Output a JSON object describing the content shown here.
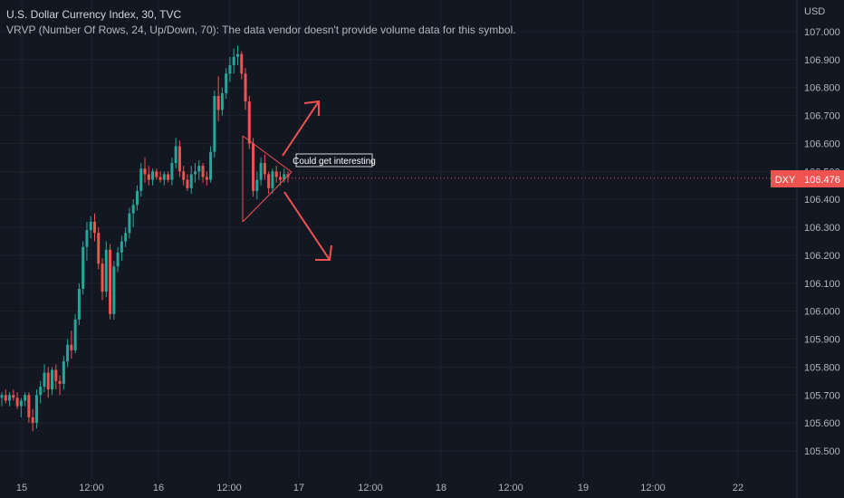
{
  "header": {
    "title": "U.S. Dollar Currency Index, 30, TVC",
    "indicator": "VRVP (Number Of Rows, 24, Up/Down, 70): The data vendor doesn't provide volume data for this symbol."
  },
  "colors": {
    "background": "#131722",
    "up": "#26a69a",
    "down": "#ef5350",
    "grid": "#1e222d",
    "text": "#b2b5be"
  },
  "price_tag": {
    "symbol": "DXY",
    "value": "106.476"
  },
  "annotation": {
    "text": "Could get interesting"
  },
  "chart_data": {
    "type": "candlestick",
    "currency_label": "USD",
    "ylim": [
      105.44,
      107.1
    ],
    "y_ticks": [
      "107.000",
      "106.900",
      "106.800",
      "106.700",
      "106.600",
      "106.500",
      "106.400",
      "106.300",
      "106.200",
      "106.100",
      "106.000",
      "105.900",
      "105.800",
      "105.700",
      "105.600",
      "105.500"
    ],
    "x_ticks": [
      "15",
      "12:00",
      "16",
      "12:00",
      "17",
      "12:00",
      "18",
      "12:00",
      "19",
      "12:00",
      "22"
    ],
    "last_price": 106.476,
    "candles": [
      {
        "o": 105.69,
        "h": 105.71,
        "l": 105.66,
        "c": 105.7
      },
      {
        "o": 105.7,
        "h": 105.72,
        "l": 105.67,
        "c": 105.68
      },
      {
        "o": 105.68,
        "h": 105.71,
        "l": 105.66,
        "c": 105.7
      },
      {
        "o": 105.7,
        "h": 105.72,
        "l": 105.68,
        "c": 105.69
      },
      {
        "o": 105.69,
        "h": 105.71,
        "l": 105.65,
        "c": 105.66
      },
      {
        "o": 105.66,
        "h": 105.69,
        "l": 105.62,
        "c": 105.68
      },
      {
        "o": 105.68,
        "h": 105.71,
        "l": 105.66,
        "c": 105.7
      },
      {
        "o": 105.7,
        "h": 105.71,
        "l": 105.6,
        "c": 105.62
      },
      {
        "o": 105.62,
        "h": 105.65,
        "l": 105.57,
        "c": 105.6
      },
      {
        "o": 105.6,
        "h": 105.72,
        "l": 105.58,
        "c": 105.7
      },
      {
        "o": 105.7,
        "h": 105.75,
        "l": 105.67,
        "c": 105.73
      },
      {
        "o": 105.73,
        "h": 105.81,
        "l": 105.71,
        "c": 105.78
      },
      {
        "o": 105.78,
        "h": 105.8,
        "l": 105.69,
        "c": 105.72
      },
      {
        "o": 105.72,
        "h": 105.8,
        "l": 105.7,
        "c": 105.79
      },
      {
        "o": 105.79,
        "h": 105.81,
        "l": 105.72,
        "c": 105.75
      },
      {
        "o": 105.75,
        "h": 105.77,
        "l": 105.7,
        "c": 105.74
      },
      {
        "o": 105.74,
        "h": 105.84,
        "l": 105.72,
        "c": 105.82
      },
      {
        "o": 105.82,
        "h": 105.9,
        "l": 105.8,
        "c": 105.88
      },
      {
        "o": 105.88,
        "h": 105.93,
        "l": 105.83,
        "c": 105.86
      },
      {
        "o": 105.86,
        "h": 105.99,
        "l": 105.85,
        "c": 105.97
      },
      {
        "o": 105.97,
        "h": 106.1,
        "l": 105.95,
        "c": 106.08
      },
      {
        "o": 106.08,
        "h": 106.25,
        "l": 106.06,
        "c": 106.23
      },
      {
        "o": 106.23,
        "h": 106.32,
        "l": 106.18,
        "c": 106.29
      },
      {
        "o": 106.29,
        "h": 106.34,
        "l": 106.26,
        "c": 106.32
      },
      {
        "o": 106.32,
        "h": 106.35,
        "l": 106.25,
        "c": 106.28
      },
      {
        "o": 106.28,
        "h": 106.3,
        "l": 106.15,
        "c": 106.17
      },
      {
        "o": 106.17,
        "h": 106.19,
        "l": 106.04,
        "c": 106.07
      },
      {
        "o": 106.07,
        "h": 106.25,
        "l": 106.05,
        "c": 106.22
      },
      {
        "o": 106.22,
        "h": 106.24,
        "l": 105.97,
        "c": 105.99
      },
      {
        "o": 105.99,
        "h": 106.18,
        "l": 105.97,
        "c": 106.16
      },
      {
        "o": 106.16,
        "h": 106.23,
        "l": 106.14,
        "c": 106.21
      },
      {
        "o": 106.21,
        "h": 106.27,
        "l": 106.18,
        "c": 106.25
      },
      {
        "o": 106.25,
        "h": 106.3,
        "l": 106.23,
        "c": 106.28
      },
      {
        "o": 106.28,
        "h": 106.37,
        "l": 106.26,
        "c": 106.35
      },
      {
        "o": 106.35,
        "h": 106.4,
        "l": 106.3,
        "c": 106.38
      },
      {
        "o": 106.38,
        "h": 106.45,
        "l": 106.36,
        "c": 106.43
      },
      {
        "o": 106.43,
        "h": 106.53,
        "l": 106.41,
        "c": 106.51
      },
      {
        "o": 106.51,
        "h": 106.55,
        "l": 106.46,
        "c": 106.49
      },
      {
        "o": 106.49,
        "h": 106.52,
        "l": 106.45,
        "c": 106.47
      },
      {
        "o": 106.47,
        "h": 106.51,
        "l": 106.45,
        "c": 106.5
      },
      {
        "o": 106.5,
        "h": 106.51,
        "l": 106.47,
        "c": 106.48
      },
      {
        "o": 106.48,
        "h": 106.5,
        "l": 106.46,
        "c": 106.47
      },
      {
        "o": 106.47,
        "h": 106.5,
        "l": 106.45,
        "c": 106.49
      },
      {
        "o": 106.49,
        "h": 106.5,
        "l": 106.46,
        "c": 106.47
      },
      {
        "o": 106.47,
        "h": 106.55,
        "l": 106.45,
        "c": 106.53
      },
      {
        "o": 106.53,
        "h": 106.62,
        "l": 106.51,
        "c": 106.59
      },
      {
        "o": 106.59,
        "h": 106.61,
        "l": 106.48,
        "c": 106.5
      },
      {
        "o": 106.5,
        "h": 106.52,
        "l": 106.45,
        "c": 106.47
      },
      {
        "o": 106.47,
        "h": 106.49,
        "l": 106.43,
        "c": 106.44
      },
      {
        "o": 106.44,
        "h": 106.52,
        "l": 106.42,
        "c": 106.49
      },
      {
        "o": 106.49,
        "h": 106.53,
        "l": 106.46,
        "c": 106.5
      },
      {
        "o": 106.5,
        "h": 106.54,
        "l": 106.47,
        "c": 106.52
      },
      {
        "o": 106.52,
        "h": 106.53,
        "l": 106.46,
        "c": 106.48
      },
      {
        "o": 106.48,
        "h": 106.5,
        "l": 106.45,
        "c": 106.47
      },
      {
        "o": 106.47,
        "h": 106.59,
        "l": 106.46,
        "c": 106.57
      },
      {
        "o": 106.57,
        "h": 106.79,
        "l": 106.55,
        "c": 106.77
      },
      {
        "o": 106.77,
        "h": 106.84,
        "l": 106.68,
        "c": 106.72
      },
      {
        "o": 106.72,
        "h": 106.8,
        "l": 106.7,
        "c": 106.78
      },
      {
        "o": 106.78,
        "h": 106.87,
        "l": 106.76,
        "c": 106.85
      },
      {
        "o": 106.85,
        "h": 106.91,
        "l": 106.82,
        "c": 106.88
      },
      {
        "o": 106.88,
        "h": 106.94,
        "l": 106.85,
        "c": 106.91
      },
      {
        "o": 106.91,
        "h": 106.95,
        "l": 106.88,
        "c": 106.92
      },
      {
        "o": 106.92,
        "h": 106.93,
        "l": 106.83,
        "c": 106.85
      },
      {
        "o": 106.85,
        "h": 106.87,
        "l": 106.72,
        "c": 106.75
      },
      {
        "o": 106.75,
        "h": 106.77,
        "l": 106.58,
        "c": 106.6
      },
      {
        "o": 106.6,
        "h": 106.62,
        "l": 106.41,
        "c": 106.43
      },
      {
        "o": 106.43,
        "h": 106.5,
        "l": 106.4,
        "c": 106.47
      },
      {
        "o": 106.47,
        "h": 106.55,
        "l": 106.45,
        "c": 106.53
      },
      {
        "o": 106.53,
        "h": 106.56,
        "l": 106.47,
        "c": 106.49
      },
      {
        "o": 106.49,
        "h": 106.5,
        "l": 106.42,
        "c": 106.44
      },
      {
        "o": 106.44,
        "h": 106.51,
        "l": 106.42,
        "c": 106.5
      },
      {
        "o": 106.5,
        "h": 106.52,
        "l": 106.46,
        "c": 106.48
      },
      {
        "o": 106.48,
        "h": 106.5,
        "l": 106.45,
        "c": 106.47
      },
      {
        "o": 106.47,
        "h": 106.51,
        "l": 106.46,
        "c": 106.49
      },
      {
        "o": 106.49,
        "h": 106.5,
        "l": 106.46,
        "c": 106.48
      }
    ]
  }
}
